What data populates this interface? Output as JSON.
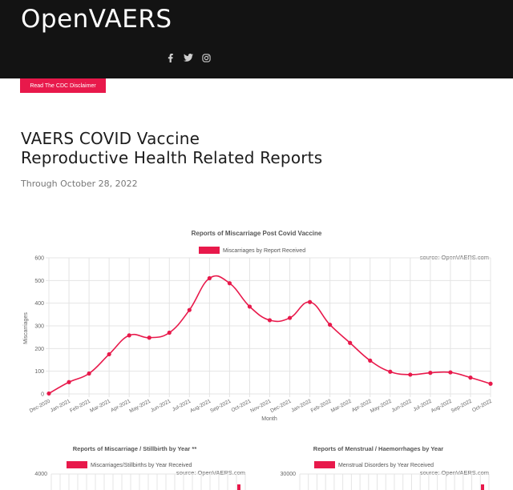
{
  "header": {
    "logo": "OpenVAERS",
    "social_icons": [
      "facebook-icon",
      "twitter-icon",
      "instagram-icon"
    ]
  },
  "disclaimer_button": "Read The CDC Disclaimer",
  "page": {
    "title_line1": "VAERS COVID Vaccine",
    "title_line2": "Reproductive Health Related Reports",
    "subtitle": "Through October 28, 2022"
  },
  "colors": {
    "accent": "#e8194b",
    "header_bg": "#131313"
  },
  "chart_data": [
    {
      "type": "line",
      "title": "Reports of Miscarriage Post Covid Vaccine",
      "legend": "Miscarriages by Report Received",
      "source": "source: OpenVAERS.com",
      "xlabel": "Month",
      "ylabel": "Miscarriages",
      "ylim": [
        0,
        600
      ],
      "yticks": [
        0,
        100,
        200,
        300,
        400,
        500,
        600
      ],
      "x": [
        "Dec-2020",
        "Jan-2021",
        "Feb-2021",
        "Mar-2021",
        "Apr-2021",
        "May-2021",
        "Jun-2021",
        "Jul-2021",
        "Aug-2021",
        "Sep-2021",
        "Oct-2021",
        "Nov-2021",
        "Dec-2021",
        "Jan-2022",
        "Feb-2022",
        "Mar-2022",
        "Apr-2022",
        "May-2022",
        "Jun-2022",
        "Jul-2022",
        "Aug-2022",
        "Sep-2022",
        "Oct-2022"
      ],
      "values": [
        2,
        52,
        90,
        175,
        258,
        248,
        270,
        370,
        510,
        488,
        385,
        325,
        335,
        405,
        305,
        225,
        147,
        98,
        85,
        93,
        95,
        72,
        45
      ]
    },
    {
      "type": "bar",
      "title": "Reports of Miscarriage / Stillbirth by Year **",
      "legend": "Miscarriages/Stillbirths by Year Received",
      "source": "source: OpenVAERS.com",
      "ylim": [
        0,
        4000
      ],
      "yticks_visible": [
        "4000"
      ]
    },
    {
      "type": "bar",
      "title": "Reports of Menstrual / Haemorrhages by Year",
      "legend": "Menstrual Disorders by Year Received",
      "source": "source: OpenVAERS.com",
      "ylim": [
        0,
        30000
      ],
      "yticks_visible": [
        "30000"
      ]
    }
  ]
}
